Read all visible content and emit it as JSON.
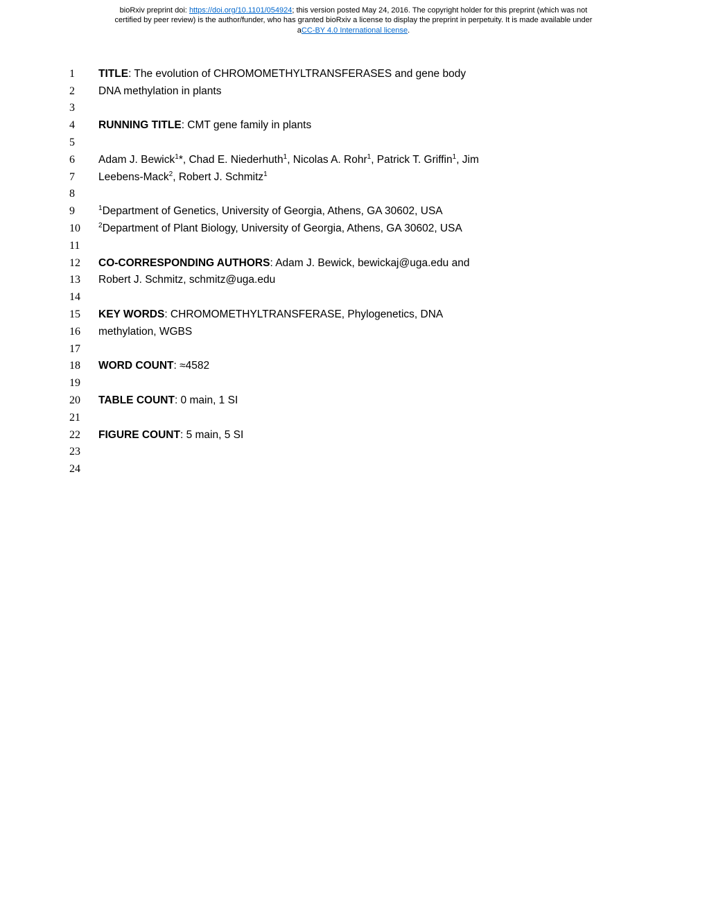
{
  "header": {
    "line1_pre": "bioRxiv preprint doi: ",
    "doi_url": "https://doi.org/10.1101/054924",
    "line1_post": "; this version posted May 24, 2016. The copyright holder for this preprint (which was not",
    "line2": "certified by peer review) is the author/funder, who has granted bioRxiv a license to display the preprint in perpetuity. It is made available under",
    "line3_pre": "a",
    "license": "CC-BY 4.0 International license",
    "line3_post": "."
  },
  "lines": {
    "1": {
      "bold": "TITLE",
      "text": ": The evolution of CHROMOMETHYLTRANSFERASES and gene body"
    },
    "2": {
      "text": "DNA methylation in plants"
    },
    "3": {
      "text": ""
    },
    "4": {
      "bold": "RUNNING TITLE",
      "text": ": CMT gene family in plants"
    },
    "5": {
      "text": ""
    },
    "6": {
      "text": "Adam J. Bewick",
      "sup1": "1",
      "text2": "*, Chad E. Niederhuth",
      "sup2": "1",
      "text3": ", Nicolas A. Rohr",
      "sup3": "1",
      "text4": ", Patrick T. Griffin",
      "sup4": "1",
      "text5": ", Jim"
    },
    "7": {
      "text": "Leebens-Mack",
      "sup1": "2",
      "text2": ", Robert J. Schmitz",
      "sup2": "1"
    },
    "8": {
      "text": ""
    },
    "9": {
      "sup1": "1",
      "text": "Department of Genetics, University of Georgia, Athens, GA 30602, USA"
    },
    "10": {
      "sup1": "2",
      "text": "Department of Plant Biology, University of Georgia, Athens, GA 30602, USA"
    },
    "11": {
      "text": ""
    },
    "12": {
      "bold": "CO-CORRESPONDING AUTHORS",
      "text": ": Adam J. Bewick, bewickaj@uga.edu and"
    },
    "13": {
      "text": "Robert J. Schmitz, schmitz@uga.edu"
    },
    "14": {
      "text": ""
    },
    "15": {
      "bold": "KEY WORDS",
      "text": ": CHROMOMETHYLTRANSFERASE, Phylogenetics, DNA"
    },
    "16": {
      "text": "methylation, WGBS"
    },
    "17": {
      "text": ""
    },
    "18": {
      "bold": "WORD COUNT",
      "text": ": ≈4582"
    },
    "19": {
      "text": ""
    },
    "20": {
      "bold": "TABLE COUNT",
      "text": ": 0 main, 1 SI"
    },
    "21": {
      "text": ""
    },
    "22": {
      "bold": "FIGURE COUNT",
      "text": ": 5 main, 5 SI"
    },
    "23": {
      "text": ""
    },
    "24": {
      "text": ""
    }
  }
}
